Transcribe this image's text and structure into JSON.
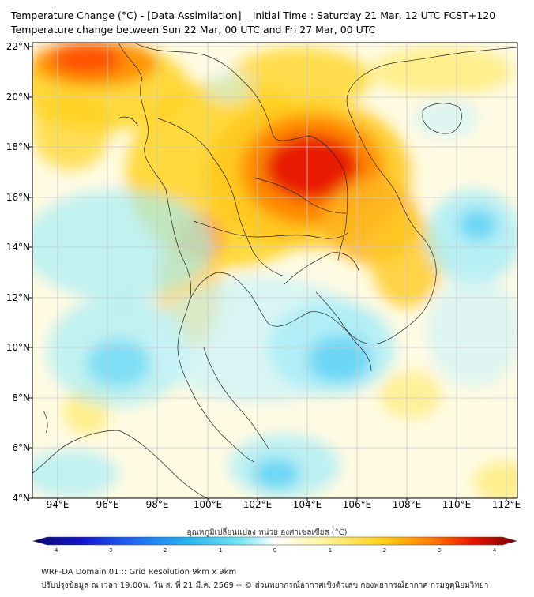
{
  "title_line1": "Temperature Change (°C) - [Data Assimilation] _ Initial Time : Saturday 21 Mar, 12 UTC FCST+120",
  "title_line2": "Temperature change between Sun 22 Mar, 00 UTC and Fri 27 Mar, 00 UTC",
  "lat_labels": [
    "22°N",
    "20°N",
    "18°N",
    "16°N",
    "14°N",
    "12°N",
    "10°N",
    "8°N",
    "6°N",
    "4°N"
  ],
  "lon_labels": [
    "94°E",
    "96°E",
    "98°E",
    "100°E",
    "102°E",
    "104°E",
    "106°E",
    "108°E",
    "110°E",
    "112°E"
  ],
  "colorbar": {
    "title": "อุณหภูมิเปลี่ยนแปลง หน่วย องศาเซลเซียส (°C)",
    "ticks": [
      "-4",
      "-3",
      "-2",
      "-1",
      "0",
      "1",
      "2",
      "3",
      "4"
    ],
    "colors": [
      "#08086e",
      "#1414c8",
      "#1e64f0",
      "#28b4f0",
      "#78e6f5",
      "#ffffff",
      "#fff5a0",
      "#ffd21e",
      "#ff8200",
      "#e61400",
      "#780000"
    ]
  },
  "footer_line1": "WRF-DA Domain 01 :: Grid Resolution 9km x 9km",
  "footer_line2": "ปรับปรุงข้อมูล ณ เวลา 19:00น. วัน ส. ที่ 21 มี.ค. 2569 -- © ส่วนพยากรณ์อากาศเชิงตัวเลข กองพยากรณ์อากาศ กรมอุตุนิยมวิทยา"
}
